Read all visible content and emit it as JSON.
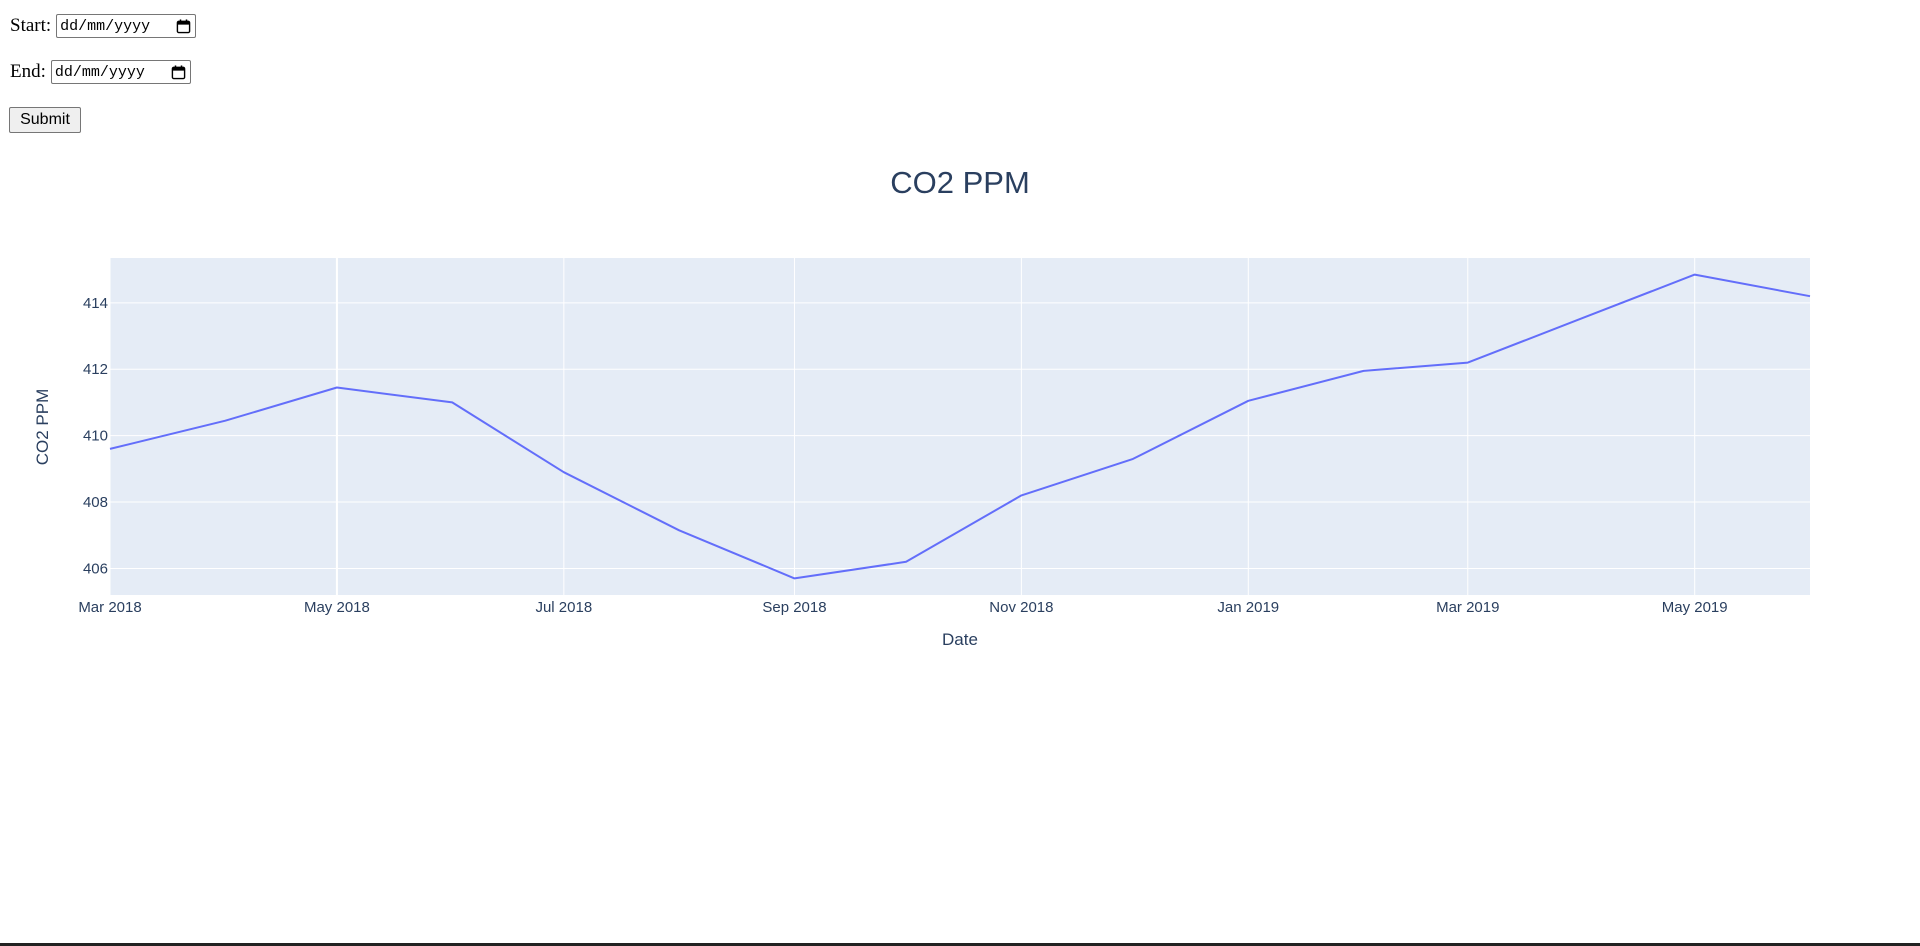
{
  "form": {
    "start_label": "Start:",
    "start_placeholder": "dd/mm/yyyy",
    "end_label": "End:",
    "end_placeholder": "dd/mm/yyyy",
    "submit_label": "Submit"
  },
  "chart_data": {
    "type": "line",
    "title": "CO2 PPM",
    "xlabel": "Date",
    "ylabel": "CO2 PPM",
    "x": [
      "2018-03-01",
      "2018-04-01",
      "2018-05-01",
      "2018-06-01",
      "2018-07-01",
      "2018-08-01",
      "2018-09-01",
      "2018-10-01",
      "2018-11-01",
      "2018-12-01",
      "2019-01-01",
      "2019-02-01",
      "2019-03-01",
      "2019-04-01",
      "2019-05-01",
      "2019-06-01"
    ],
    "series": [
      {
        "values": [
          409.6,
          410.45,
          411.45,
          411.0,
          408.9,
          407.15,
          405.7,
          406.2,
          408.2,
          409.3,
          411.05,
          411.95,
          412.2,
          413.55,
          414.85,
          414.2
        ]
      }
    ],
    "xlim": [
      "2018-03-01",
      "2019-06-01"
    ],
    "ylim": [
      405.2,
      415.35
    ],
    "x_ticks": [
      "Mar 2018",
      "May 2018",
      "Jul 2018",
      "Sep 2018",
      "Nov 2018",
      "Jan 2019",
      "Mar 2019",
      "May 2019"
    ],
    "x_tick_dates": [
      "2018-03-01",
      "2018-05-01",
      "2018-07-01",
      "2018-09-01",
      "2018-11-01",
      "2019-01-01",
      "2019-03-01",
      "2019-05-01"
    ],
    "y_ticks": [
      406,
      408,
      410,
      412,
      414
    ],
    "grid": true,
    "colors": {
      "line": "#636efa",
      "plot_bg": "#e5ecf6",
      "grid": "#ffffff",
      "text": "#2a3f5f"
    }
  }
}
